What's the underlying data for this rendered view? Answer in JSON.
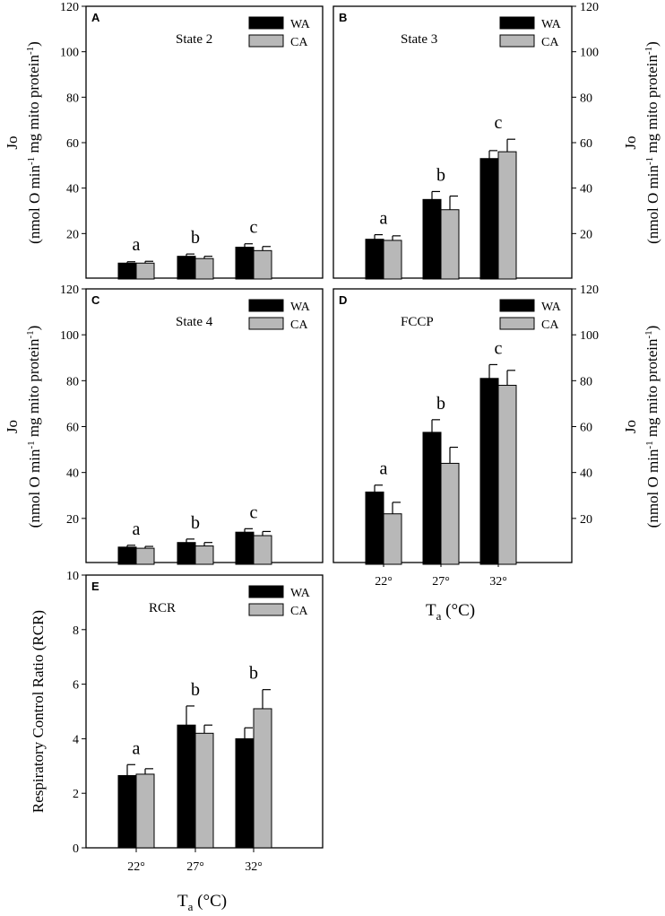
{
  "colors": {
    "WA": "#000000",
    "CA": "#b8b8b8",
    "axis": "#000000"
  },
  "x_axis": {
    "label_main": "T",
    "label_sub": "a",
    "label_rest": " (°C)"
  },
  "chart_data": [
    {
      "panel": "A",
      "type": "bar",
      "title": "State 2",
      "axis_side": "left",
      "categories": [
        "22°",
        "27°",
        "32°"
      ],
      "show_xticklabels": false,
      "ylim": [
        0,
        120
      ],
      "yticks": [
        20,
        40,
        60,
        80,
        100,
        120
      ],
      "ylabel_line1": "Jo",
      "ylabel_line2": "(nmol O min-1 mg mito protein-1)",
      "legend": [
        "WA",
        "CA"
      ],
      "series": [
        {
          "name": "WA",
          "values": [
            7,
            10,
            14
          ],
          "errors": [
            0.6,
            1,
            1.5
          ]
        },
        {
          "name": "CA",
          "values": [
            7,
            9,
            12.5
          ],
          "errors": [
            0.8,
            1,
            1.8
          ]
        }
      ],
      "significance": [
        "a",
        "b",
        "c"
      ]
    },
    {
      "panel": "B",
      "type": "bar",
      "title": "State 3",
      "axis_side": "right",
      "categories": [
        "22°",
        "27°",
        "32°"
      ],
      "show_xticklabels": false,
      "ylim": [
        0,
        120
      ],
      "yticks": [
        20,
        40,
        60,
        80,
        100,
        120
      ],
      "ylabel_line1": "Jo",
      "ylabel_line2": "(nmol O min-1 mg mito protein-1)",
      "legend": [
        "WA",
        "CA"
      ],
      "series": [
        {
          "name": "WA",
          "values": [
            17.5,
            35,
            53
          ],
          "errors": [
            2,
            3.5,
            3.5
          ]
        },
        {
          "name": "CA",
          "values": [
            17,
            30.5,
            56
          ],
          "errors": [
            2,
            6,
            5.5
          ]
        }
      ],
      "significance": [
        "a",
        "b",
        "c"
      ]
    },
    {
      "panel": "C",
      "type": "bar",
      "title": "State 4",
      "axis_side": "left",
      "categories": [
        "22°",
        "27°",
        "32°"
      ],
      "show_xticklabels": false,
      "ylim": [
        0,
        120
      ],
      "yticks": [
        20,
        40,
        60,
        80,
        100,
        120
      ],
      "ylabel_line1": "Jo",
      "ylabel_line2": "(nmol O min-1 mg mito protein-1)",
      "legend": [
        "WA",
        "CA"
      ],
      "series": [
        {
          "name": "WA",
          "values": [
            7.5,
            9.5,
            14
          ],
          "errors": [
            0.8,
            1.5,
            1.5
          ]
        },
        {
          "name": "CA",
          "values": [
            7,
            8,
            12.5
          ],
          "errors": [
            0.8,
            1.5,
            1.8
          ]
        }
      ],
      "significance": [
        "a",
        "b",
        "c"
      ]
    },
    {
      "panel": "D",
      "type": "bar",
      "title": "FCCP",
      "axis_side": "right",
      "categories": [
        "22°",
        "27°",
        "32°"
      ],
      "show_xticklabels": true,
      "ylim": [
        0,
        120
      ],
      "yticks": [
        20,
        40,
        60,
        80,
        100,
        120
      ],
      "ylabel_line1": "Jo",
      "ylabel_line2": "(nmol O min-1 mg mito protein-1)",
      "legend": [
        "WA",
        "CA"
      ],
      "series": [
        {
          "name": "WA",
          "values": [
            31.5,
            57.5,
            81
          ],
          "errors": [
            3,
            5.5,
            6
          ]
        },
        {
          "name": "CA",
          "values": [
            22,
            44,
            78
          ],
          "errors": [
            5,
            7,
            6.5
          ]
        }
      ],
      "significance": [
        "a",
        "b",
        "c"
      ]
    },
    {
      "panel": "E",
      "type": "bar",
      "title": "RCR",
      "axis_side": "left",
      "categories": [
        "22°",
        "27°",
        "32°"
      ],
      "show_xticklabels": true,
      "ylim": [
        0,
        10
      ],
      "yticks": [
        0,
        2,
        4,
        6,
        8,
        10
      ],
      "ylabel_line1": "Respiratory Control Ratio (RCR)",
      "ylabel_line2": "",
      "legend": [
        "WA",
        "CA"
      ],
      "series": [
        {
          "name": "WA",
          "values": [
            2.65,
            4.5,
            4.0
          ],
          "errors": [
            0.4,
            0.7,
            0.4
          ]
        },
        {
          "name": "CA",
          "values": [
            2.7,
            4.2,
            5.1
          ],
          "errors": [
            0.2,
            0.3,
            0.7
          ]
        }
      ],
      "significance": [
        "a",
        "b",
        "b"
      ]
    }
  ]
}
